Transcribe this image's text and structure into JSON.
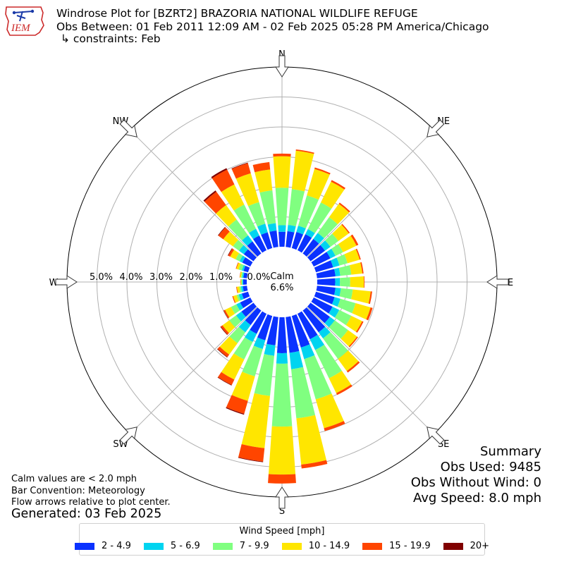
{
  "header": {
    "logo_text": "IEM",
    "title": "Windrose Plot for [BZRT2] BRAZORIA NATIONAL WILDLIFE REFUGE",
    "subtitle": "Obs Between: 01 Feb 2011 12:09 AM - 02 Feb 2025 05:28 PM America/Chicago",
    "constraints": "↳ constraints: Feb"
  },
  "chart_data": {
    "type": "windrose",
    "bar_convention": "meteorology",
    "calm_label": "Calm",
    "calm_value": "6.6%",
    "r_ticks": [
      "0.0%",
      "1.0%",
      "2.0%",
      "3.0%",
      "4.0%",
      "5.0%"
    ],
    "rmax_percent": 6.0,
    "directions": [
      "N",
      "NE",
      "E",
      "SE",
      "S",
      "SW",
      "W",
      "NW"
    ],
    "legend_title": "Wind Speed [mph]",
    "bins": [
      {
        "name": "2 - 4.9",
        "color": "#0a32ff"
      },
      {
        "name": "5 - 6.9",
        "color": "#00d4f0"
      },
      {
        "name": "7 - 9.9",
        "color": "#80ff80"
      },
      {
        "name": "10 - 14.9",
        "color": "#ffe600"
      },
      {
        "name": "15 - 19.9",
        "color": "#ff4500"
      },
      {
        "name": "20+",
        "color": "#800000"
      }
    ],
    "sector_width_deg": 10,
    "sectors": [
      {
        "dir_deg": 0,
        "values": [
          0.5,
          0.72,
          1.97,
          3.02,
          3.11,
          3.11
        ]
      },
      {
        "dir_deg": 10,
        "values": [
          0.53,
          0.74,
          1.94,
          3.23,
          3.27,
          3.27
        ]
      },
      {
        "dir_deg": 20,
        "values": [
          0.56,
          0.78,
          1.83,
          2.75,
          2.8,
          2.8
        ]
      },
      {
        "dir_deg": 30,
        "values": [
          0.6,
          0.79,
          1.78,
          2.55,
          2.61,
          2.61
        ]
      },
      {
        "dir_deg": 40,
        "values": [
          0.6,
          0.85,
          1.5,
          2.05,
          2.1,
          2.1
        ]
      },
      {
        "dir_deg": 50,
        "values": [
          0.6,
          0.82,
          1.15,
          1.58,
          1.62,
          1.62
        ]
      },
      {
        "dir_deg": 60,
        "values": [
          0.62,
          0.81,
          1.09,
          1.59,
          1.66,
          1.66
        ]
      },
      {
        "dir_deg": 70,
        "values": [
          0.6,
          0.82,
          1.1,
          1.52,
          1.56,
          1.56
        ]
      },
      {
        "dir_deg": 80,
        "values": [
          0.62,
          0.78,
          1.15,
          1.52,
          1.56,
          1.56
        ]
      },
      {
        "dir_deg": 90,
        "values": [
          0.6,
          0.76,
          1.1,
          1.56,
          1.58,
          1.58
        ]
      },
      {
        "dir_deg": 100,
        "values": [
          0.62,
          0.8,
          1.2,
          1.8,
          1.85,
          1.85
        ]
      },
      {
        "dir_deg": 110,
        "values": [
          0.65,
          0.85,
          1.38,
          1.9,
          1.97,
          1.97
        ]
      },
      {
        "dir_deg": 120,
        "values": [
          0.7,
          0.95,
          1.4,
          1.8,
          1.85,
          1.85
        ]
      },
      {
        "dir_deg": 130,
        "values": [
          0.8,
          1.0,
          1.55,
          1.92,
          1.96,
          1.96
        ]
      },
      {
        "dir_deg": 140,
        "values": [
          0.9,
          1.15,
          2.0,
          2.5,
          2.56,
          2.56
        ]
      },
      {
        "dir_deg": 150,
        "values": [
          0.95,
          1.35,
          2.4,
          2.95,
          3.02,
          3.02
        ]
      },
      {
        "dir_deg": 160,
        "values": [
          1.1,
          1.5,
          2.9,
          3.9,
          4.0,
          4.0
        ]
      },
      {
        "dir_deg": 170,
        "values": [
          1.2,
          1.75,
          3.4,
          4.95,
          5.08,
          5.08
        ]
      },
      {
        "dir_deg": 180,
        "values": [
          1.2,
          1.55,
          3.65,
          5.25,
          5.55,
          5.55
        ]
      },
      {
        "dir_deg": 190,
        "values": [
          0.95,
          1.3,
          2.65,
          4.4,
          4.85,
          4.87
        ]
      },
      {
        "dir_deg": 200,
        "values": [
          0.85,
          1.15,
          2.1,
          2.95,
          3.4,
          3.43
        ]
      },
      {
        "dir_deg": 210,
        "values": [
          0.75,
          1.05,
          1.7,
          2.45,
          2.65,
          2.67
        ]
      },
      {
        "dir_deg": 220,
        "values": [
          0.6,
          0.9,
          1.35,
          1.82,
          1.92,
          1.94
        ]
      },
      {
        "dir_deg": 230,
        "values": [
          0.5,
          0.72,
          1.0,
          1.28,
          1.35,
          1.37
        ]
      },
      {
        "dir_deg": 240,
        "values": [
          0.38,
          0.52,
          0.72,
          0.94,
          0.99,
          1.0
        ]
      },
      {
        "dir_deg": 250,
        "values": [
          0.22,
          0.33,
          0.4,
          0.52,
          0.55,
          0.55
        ]
      },
      {
        "dir_deg": 260,
        "values": [
          0.14,
          0.2,
          0.26,
          0.34,
          0.36,
          0.36
        ]
      },
      {
        "dir_deg": 270,
        "values": [
          0.12,
          0.15,
          0.18,
          0.2,
          0.21,
          0.21
        ]
      },
      {
        "dir_deg": 280,
        "values": [
          0.12,
          0.16,
          0.2,
          0.24,
          0.25,
          0.25
        ]
      },
      {
        "dir_deg": 290,
        "values": [
          0.16,
          0.22,
          0.33,
          0.41,
          0.43,
          0.43
        ]
      },
      {
        "dir_deg": 300,
        "values": [
          0.3,
          0.4,
          0.55,
          0.75,
          0.82,
          0.84
        ]
      },
      {
        "dir_deg": 310,
        "values": [
          0.4,
          0.6,
          0.85,
          1.25,
          1.45,
          1.47
        ]
      },
      {
        "dir_deg": 320,
        "values": [
          0.5,
          0.75,
          1.4,
          2.0,
          2.55,
          2.6
        ]
      },
      {
        "dir_deg": 330,
        "values": [
          0.55,
          0.8,
          1.7,
          2.45,
          3.0,
          3.05
        ]
      },
      {
        "dir_deg": 340,
        "values": [
          0.55,
          0.85,
          1.6,
          2.6,
          2.95,
          2.97
        ]
      },
      {
        "dir_deg": 350,
        "values": [
          0.55,
          0.8,
          1.9,
          2.6,
          2.85,
          2.85
        ]
      }
    ]
  },
  "notes": {
    "calm": "Calm values are < 2.0 mph",
    "convention": "Bar Convention: Meteorology",
    "flow": "Flow arrows relative to plot center.",
    "generated": "Generated: 03 Feb 2025"
  },
  "summary": {
    "title": "Summary",
    "obs_used": "Obs Used: 9485",
    "obs_without_wind": "Obs Without Wind: 0",
    "avg_speed": "Avg Speed: 8.0 mph"
  }
}
